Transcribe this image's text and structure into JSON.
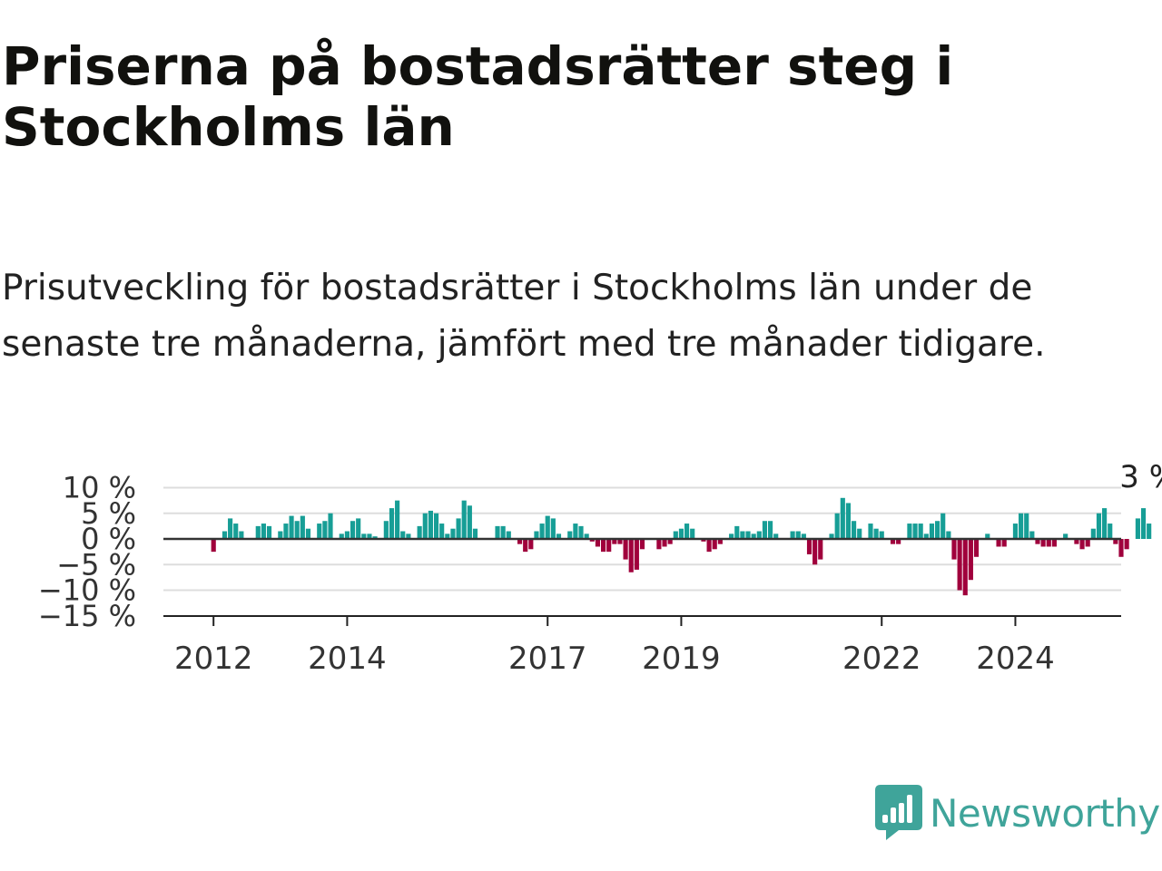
{
  "title": "Priserna på bostadsrätter steg i Stockholms län",
  "subtitle": "Prisutveckling för bostadsrätter i Stockholms län under de senaste tre månaderna, jämfört med tre månader tidigare.",
  "brand": {
    "name": "Newsworthy",
    "color": "#3fa49a",
    "icon": "newsworthy-logo-icon"
  },
  "colors": {
    "positive": "#179e96",
    "negative": "#a0003c",
    "grid": "#dddddd",
    "baseline": "#333333"
  },
  "chart_data": {
    "type": "bar",
    "title": "Priserna på bostadsrätter steg i Stockholms län",
    "subtitle": "Prisutveckling för bostadsrätter i Stockholms län under de senaste tre månaderna, jämfört med tre månader tidigare.",
    "x_start": "2011-01",
    "x_end": "2025-05",
    "x_tick_labels": [
      "2012",
      "2014",
      "2017",
      "2019",
      "2022",
      "2024"
    ],
    "x_tick_positions": [
      "2011-10",
      "2013-10",
      "2016-10",
      "2018-10",
      "2021-10",
      "2023-10"
    ],
    "y_tick_labels": [
      "10 %",
      "5 %",
      "0 %",
      "−5 %",
      "−10 %",
      "−15 %"
    ],
    "y_tick_values": [
      10,
      5,
      0,
      -5,
      -10,
      -15
    ],
    "ylim": [
      -15,
      10
    ],
    "grid": true,
    "last_value_label": "3 %",
    "series": [
      {
        "start": "2011-10",
        "values": [
          -2.5,
          0,
          1.5,
          4,
          3,
          1.5,
          0,
          0,
          2.5,
          3,
          2.5,
          0,
          1.5,
          3,
          4.5,
          3.5,
          4.5,
          2,
          0,
          3,
          3.5,
          5,
          0,
          1,
          1.5,
          3.5,
          4,
          1,
          1,
          0.5,
          0,
          3.5,
          6,
          7.5,
          1.5,
          1,
          0,
          2.5,
          5,
          5.5,
          5,
          3,
          1,
          2,
          4,
          7.5,
          6.5,
          2,
          0,
          0,
          0,
          2.5,
          2.5,
          1.5,
          0,
          -1,
          -2.5,
          -2,
          1.5,
          3,
          4.5,
          4,
          1,
          0,
          1.5,
          3,
          2.5,
          1,
          -0.5,
          -1.5,
          -2.5,
          -2.5,
          -1,
          -1,
          -4,
          -6.5,
          -6,
          -2,
          0,
          0,
          -2,
          -1.5,
          -1,
          1.5,
          2,
          3,
          2,
          0,
          -0.5,
          -2.5,
          -2,
          -1,
          0,
          1,
          2.5,
          1.5,
          1.5,
          1,
          1.5,
          3.5,
          3.5,
          1,
          0,
          0,
          1.5,
          1.5,
          1,
          -3,
          -5,
          -4,
          0,
          1,
          5,
          8,
          7,
          3.5,
          2,
          0,
          3,
          2,
          1.5,
          0,
          -1,
          -1,
          0,
          3,
          3,
          3,
          1,
          3,
          3.5,
          5,
          1.5,
          -4,
          -10,
          -11,
          -8,
          -3.5,
          0,
          1,
          0,
          -1.5,
          -1.5,
          0,
          3,
          5,
          5,
          1.5,
          -1,
          -1.5,
          -1.5,
          -1.5,
          0,
          1,
          0,
          -1,
          -2,
          -1.5,
          2,
          5,
          6,
          3,
          -1,
          -3.5,
          -2,
          0,
          4,
          6,
          3
        ]
      }
    ]
  }
}
